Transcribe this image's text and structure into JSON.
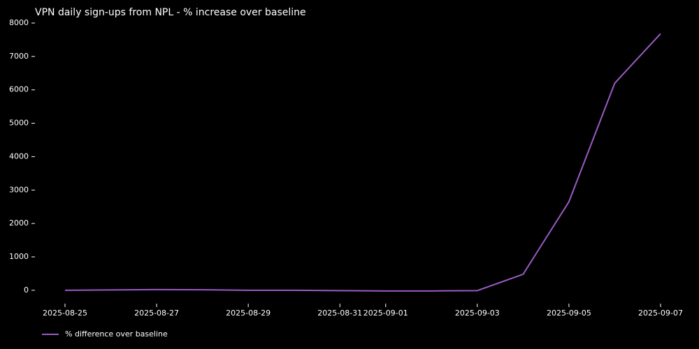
{
  "chart_data": {
    "type": "line",
    "title": "VPN daily sign-ups from NPL - % increase over baseline",
    "x": [
      "2025-08-25",
      "2025-08-26",
      "2025-08-27",
      "2025-08-28",
      "2025-08-29",
      "2025-08-30",
      "2025-08-31",
      "2025-09-01",
      "2025-09-02",
      "2025-09-03",
      "2025-09-04",
      "2025-09-05",
      "2025-09-06",
      "2025-09-07"
    ],
    "series": [
      {
        "name": "% difference over baseline",
        "color": "#9a5cc6",
        "values": [
          0,
          10,
          20,
          15,
          0,
          0,
          -10,
          -20,
          -20,
          -10,
          480,
          2650,
          6200,
          7680
        ]
      }
    ],
    "xlim": [
      "2025-08-25",
      "2025-09-07"
    ],
    "xticks": [
      "2025-08-25",
      "2025-08-27",
      "2025-08-29",
      "2025-08-31",
      "2025-09-01",
      "2025-09-03",
      "2025-09-05",
      "2025-09-07"
    ],
    "ylim": [
      -400,
      8000
    ],
    "yticks": [
      0,
      1000,
      2000,
      3000,
      4000,
      5000,
      6000,
      7000,
      8000
    ],
    "grid": false,
    "legend": "lower left"
  }
}
